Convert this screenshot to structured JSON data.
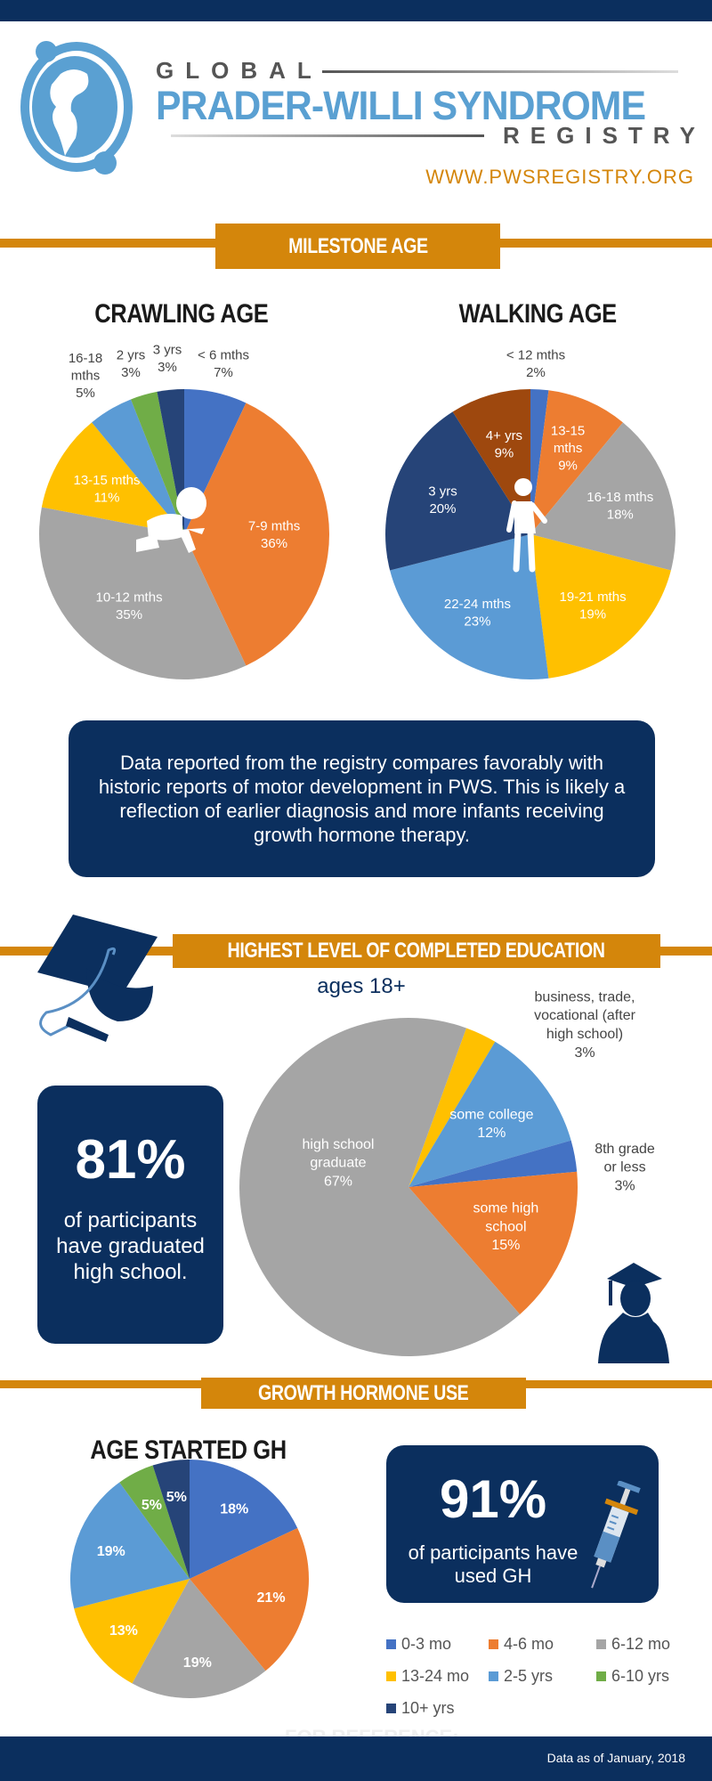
{
  "header": {
    "logo_top": "GLOBAL",
    "logo_main": "PRADER-WILLI SYNDROME",
    "logo_bottom": "REGISTRY",
    "website": "WWW.PWSREGISTRY.ORG"
  },
  "sections": {
    "milestone": "MILESTONE AGE",
    "education": "HIGHEST LEVEL OF COMPLETED EDUCATION",
    "education_sub": "ages 18+",
    "growth": "GROWTH HORMONE USE"
  },
  "milestone_note": "Data reported from the registry compares favorably with historic reports of motor development in PWS. This is likely a reflection of  earlier diagnosis and more infants receiving growth hormone therapy.",
  "education_stat": {
    "value": "81%",
    "text": "of participants have graduated high school."
  },
  "gh_stat": {
    "value": "91%",
    "text": "of participants have used GH"
  },
  "watermark": "FOR REFERENCE:",
  "footer": {
    "note": "Data as of January, 2018"
  },
  "colors": {
    "navy": "#0b2f5e",
    "orange": "#d4860b",
    "logo_blue": "#5aa0d2"
  },
  "icons": [
    "globe-logo-icon",
    "crawling-baby-icon",
    "walking-person-icon",
    "graduation-cap-icon",
    "graduate-silhouette-icon",
    "syringe-icon"
  ],
  "chart_data": [
    {
      "type": "pie",
      "title": "CRAWLING AGE",
      "labels": [
        "< 6 mths",
        "7-9 mths",
        "10-12 mths",
        "13-15 mths",
        "16-18\nmths",
        "2 yrs",
        "3 yrs"
      ],
      "values": [
        7,
        36,
        35,
        11,
        5,
        3,
        3
      ],
      "value_labels": [
        "7%",
        "36%",
        "35%",
        "11%",
        "5%",
        "3%",
        "3%"
      ],
      "colors": [
        "#4472c4",
        "#ed7d31",
        "#a5a5a5",
        "#ffc000",
        "#5b9bd5",
        "#70ad47",
        "#264478"
      ]
    },
    {
      "type": "pie",
      "title": "WALKING AGE",
      "labels": [
        "< 12 mths",
        "13-15\nmths",
        "16-18 mths",
        "19-21 mths",
        "22-24 mths",
        "3 yrs",
        "4+ yrs"
      ],
      "values": [
        2,
        9,
        18,
        19,
        23,
        20,
        9
      ],
      "value_labels": [
        "2%",
        "9%",
        "18%",
        "19%",
        "23%",
        "20%",
        "9%"
      ],
      "colors": [
        "#4472c4",
        "#ed7d31",
        "#a5a5a5",
        "#ffc000",
        "#5b9bd5",
        "#264478",
        "#9e480e"
      ]
    },
    {
      "type": "pie",
      "title": "",
      "labels": [
        "business, trade,\nvocational (after\nhigh school)",
        "some college",
        "8th grade\nor less",
        "some high\nschool",
        "high school\ngraduate"
      ],
      "values": [
        3,
        12,
        3,
        15,
        67
      ],
      "value_labels": [
        "3%",
        "12%",
        "3%",
        "15%",
        "67%"
      ],
      "colors": [
        "#ffc000",
        "#5b9bd5",
        "#4472c4",
        "#ed7d31",
        "#a5a5a5"
      ]
    },
    {
      "type": "pie",
      "title": "AGE STARTED GH",
      "labels": [
        "0-3 mo",
        "4-6 mo",
        "6-12 mo",
        "13-24 mo",
        "2-5 yrs",
        "6-10 yrs",
        "10+ yrs"
      ],
      "values": [
        18,
        21,
        19,
        13,
        19,
        5,
        5
      ],
      "value_labels": [
        "18%",
        "21%",
        "19%",
        "13%",
        "19%",
        "5%",
        "5%"
      ],
      "colors": [
        "#4472c4",
        "#ed7d31",
        "#a5a5a5",
        "#ffc000",
        "#5b9bd5",
        "#70ad47",
        "#264478"
      ],
      "legend": "bottom-right"
    }
  ]
}
